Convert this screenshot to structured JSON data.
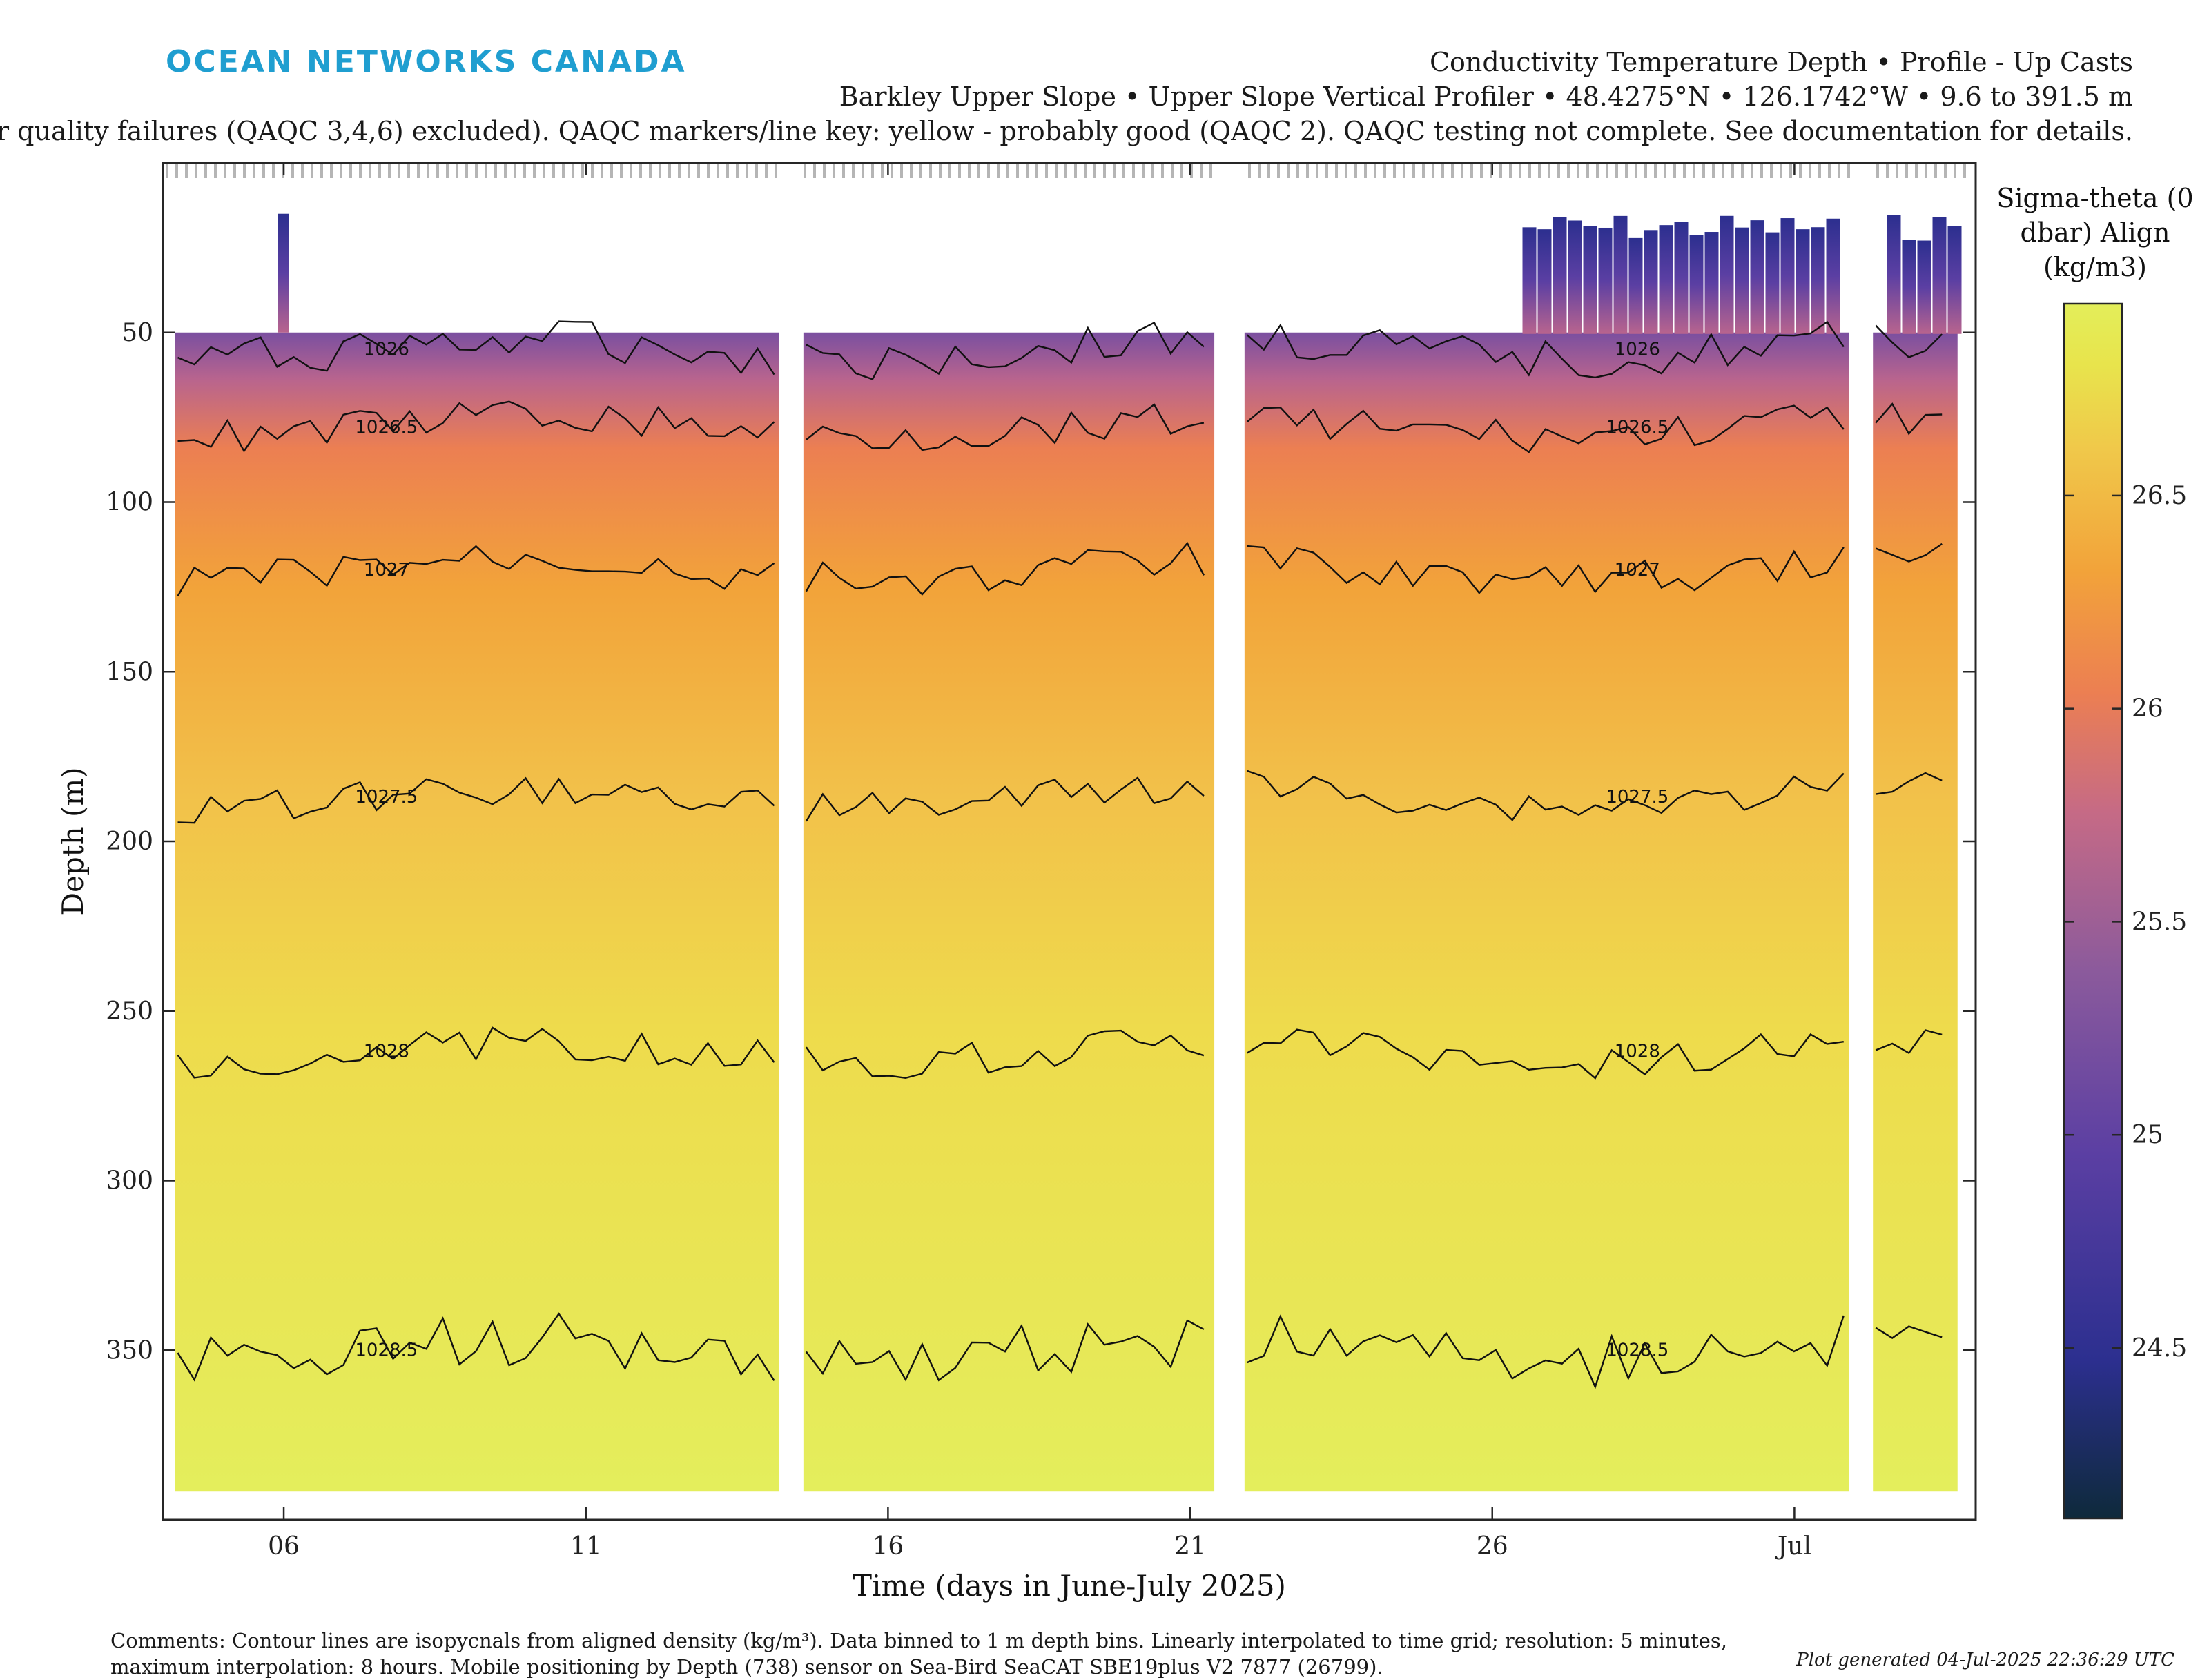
{
  "header": {
    "logo_text": "OCEAN NETWORKS CANADA",
    "title_line1": "Conductivity Temperature Depth • Profile - Up Casts",
    "title_line2": "Barkley Upper Slope • Upper Slope Vertical Profiler • 48.4275°N • 126.1742°W • 9.6 to 391.5 m",
    "title_line3": "or quality failures (QAQC 3,4,6) excluded). QAQC markers/line key: yellow - probably good (QAQC 2). QAQC testing not complete. See documentation for details."
  },
  "footer": {
    "comments_line1": "Comments: Contour lines are isopycnals from aligned density (kg/m³). Data binned to 1 m depth bins. Linearly interpolated to time grid; resolution: 5 minutes,",
    "comments_line2": "maximum interpolation: 8 hours. Mobile positioning by Depth (738) sensor on Sea-Bird SeaCAT SBE19plus V2 7877 (26799).",
    "generated": "Plot generated 04-Jul-2025 22:36:29 UTC"
  },
  "chart_data": {
    "type": "heatmap",
    "xlabel": "Time (days in June-July 2025)",
    "ylabel": "Depth (m)",
    "xlim": [
      "2025-06-04",
      "2025-07-04"
    ],
    "ylim": [
      0,
      400
    ],
    "y_reversed": true,
    "x_ticks": [
      "06",
      "11",
      "16",
      "21",
      "26",
      "Jul"
    ],
    "x_tick_dates": [
      "2025-06-06",
      "2025-06-11",
      "2025-06-16",
      "2025-06-21",
      "2025-06-26",
      "2025-07-01"
    ],
    "y_ticks": [
      50,
      100,
      150,
      200,
      250,
      300,
      350
    ],
    "colorbar": {
      "label_line1": "Sigma-theta (0",
      "label_line2": "dbar) Align",
      "label_line3": "(kg/m3)",
      "ticks": [
        24.5,
        25,
        25.5,
        26,
        26.5
      ],
      "range": [
        24.1,
        26.95
      ],
      "colormap": [
        "#0e2a3b",
        "#2c2f8f",
        "#5b3fa3",
        "#8b5a9c",
        "#c56a86",
        "#ec7f52",
        "#f2a33a",
        "#f0c84a",
        "#e8e44c",
        "#e3ee5a"
      ]
    },
    "contours": [
      {
        "label": "1026",
        "depth_m": 55
      },
      {
        "label": "1026.5",
        "depth_m": 78
      },
      {
        "label": "1027",
        "depth_m": 120
      },
      {
        "label": "1027.5",
        "depth_m": 187
      },
      {
        "label": "1028",
        "depth_m": 262
      },
      {
        "label": "1028.5",
        "depth_m": 350
      }
    ],
    "data_gaps": [
      {
        "start": "2025-06-14.2",
        "end": "2025-06-14.6"
      },
      {
        "start": "2025-06-21.4",
        "end": "2025-06-21.9"
      },
      {
        "start": "2025-07-01.9",
        "end": "2025-07-02.3"
      }
    ],
    "qaqc_marker_color": "#b5b5b5",
    "surface_depth_m": 50,
    "shallow_profiles_after": "2025-06-26.5",
    "shallow_depth_m": 15
  }
}
